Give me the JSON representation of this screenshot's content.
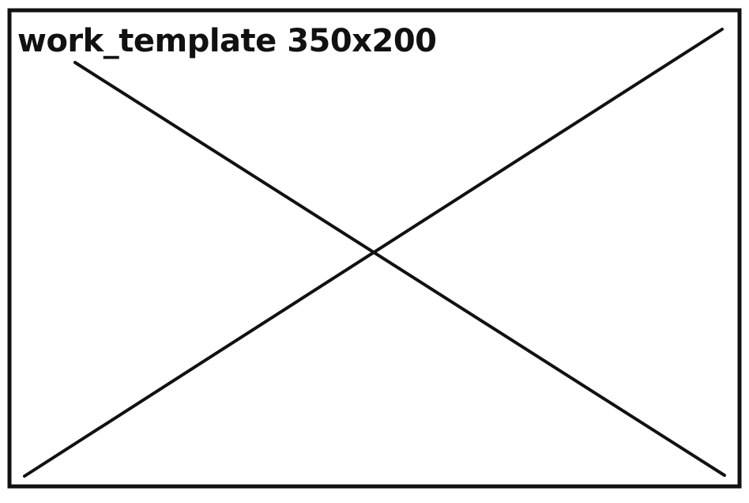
{
  "title": "work_template 350x200",
  "colors": {
    "stroke": "#111111",
    "background": "#ffffff"
  }
}
